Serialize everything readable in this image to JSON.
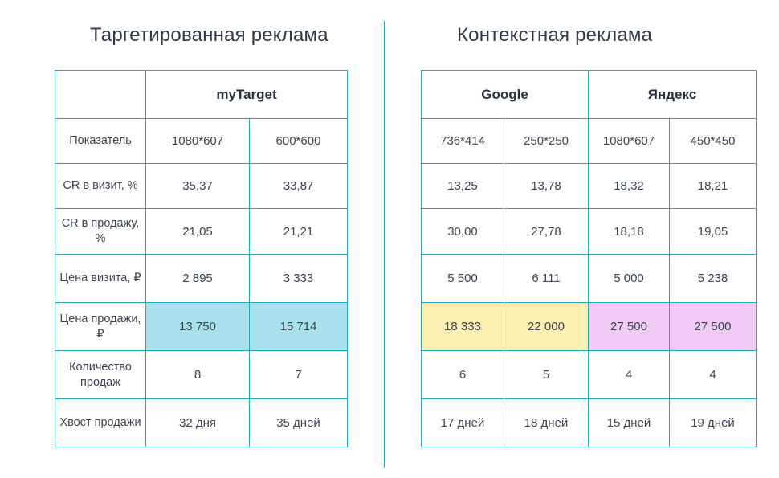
{
  "left": {
    "title": "Таргетированная реклама",
    "platform": "myTarget",
    "row_labels": [
      "Показатель",
      "CR в визит, %",
      "CR в продажу, %",
      "Цена визита, ₽",
      "Цена продажи, ₽",
      "Количество продаж",
      "Хвост продажи"
    ],
    "formats": [
      "1080*607",
      "600*600"
    ],
    "rows": [
      [
        "35,37",
        "33,87"
      ],
      [
        "21,05",
        "21,21"
      ],
      [
        "2 895",
        "3 333"
      ],
      [
        "13 750",
        "15 714"
      ],
      [
        "8",
        "7"
      ],
      [
        "32 дня",
        "35 дней"
      ]
    ]
  },
  "right": {
    "title": "Контекстная реклама",
    "platforms": [
      "Google",
      "Яндекс"
    ],
    "formats": [
      "736*414",
      "250*250",
      "1080*607",
      "450*450"
    ],
    "rows": [
      [
        "13,25",
        "13,78",
        "18,32",
        "18,21"
      ],
      [
        "30,00",
        "27,78",
        "18,18",
        "19,05"
      ],
      [
        "5 500",
        "6 111",
        "5 000",
        "5 238"
      ],
      [
        "18 333",
        "22 000",
        "27 500",
        "27 500"
      ],
      [
        "6",
        "5",
        "4",
        "4"
      ],
      [
        "17 дней",
        "18 дней",
        "15 дней",
        "19 дней"
      ]
    ]
  },
  "highlight_colors": {
    "mytarget": "#a8e1ec",
    "google": "#fbefb2",
    "yandex": "#f1caf6",
    "border": "#2aa7b6"
  }
}
